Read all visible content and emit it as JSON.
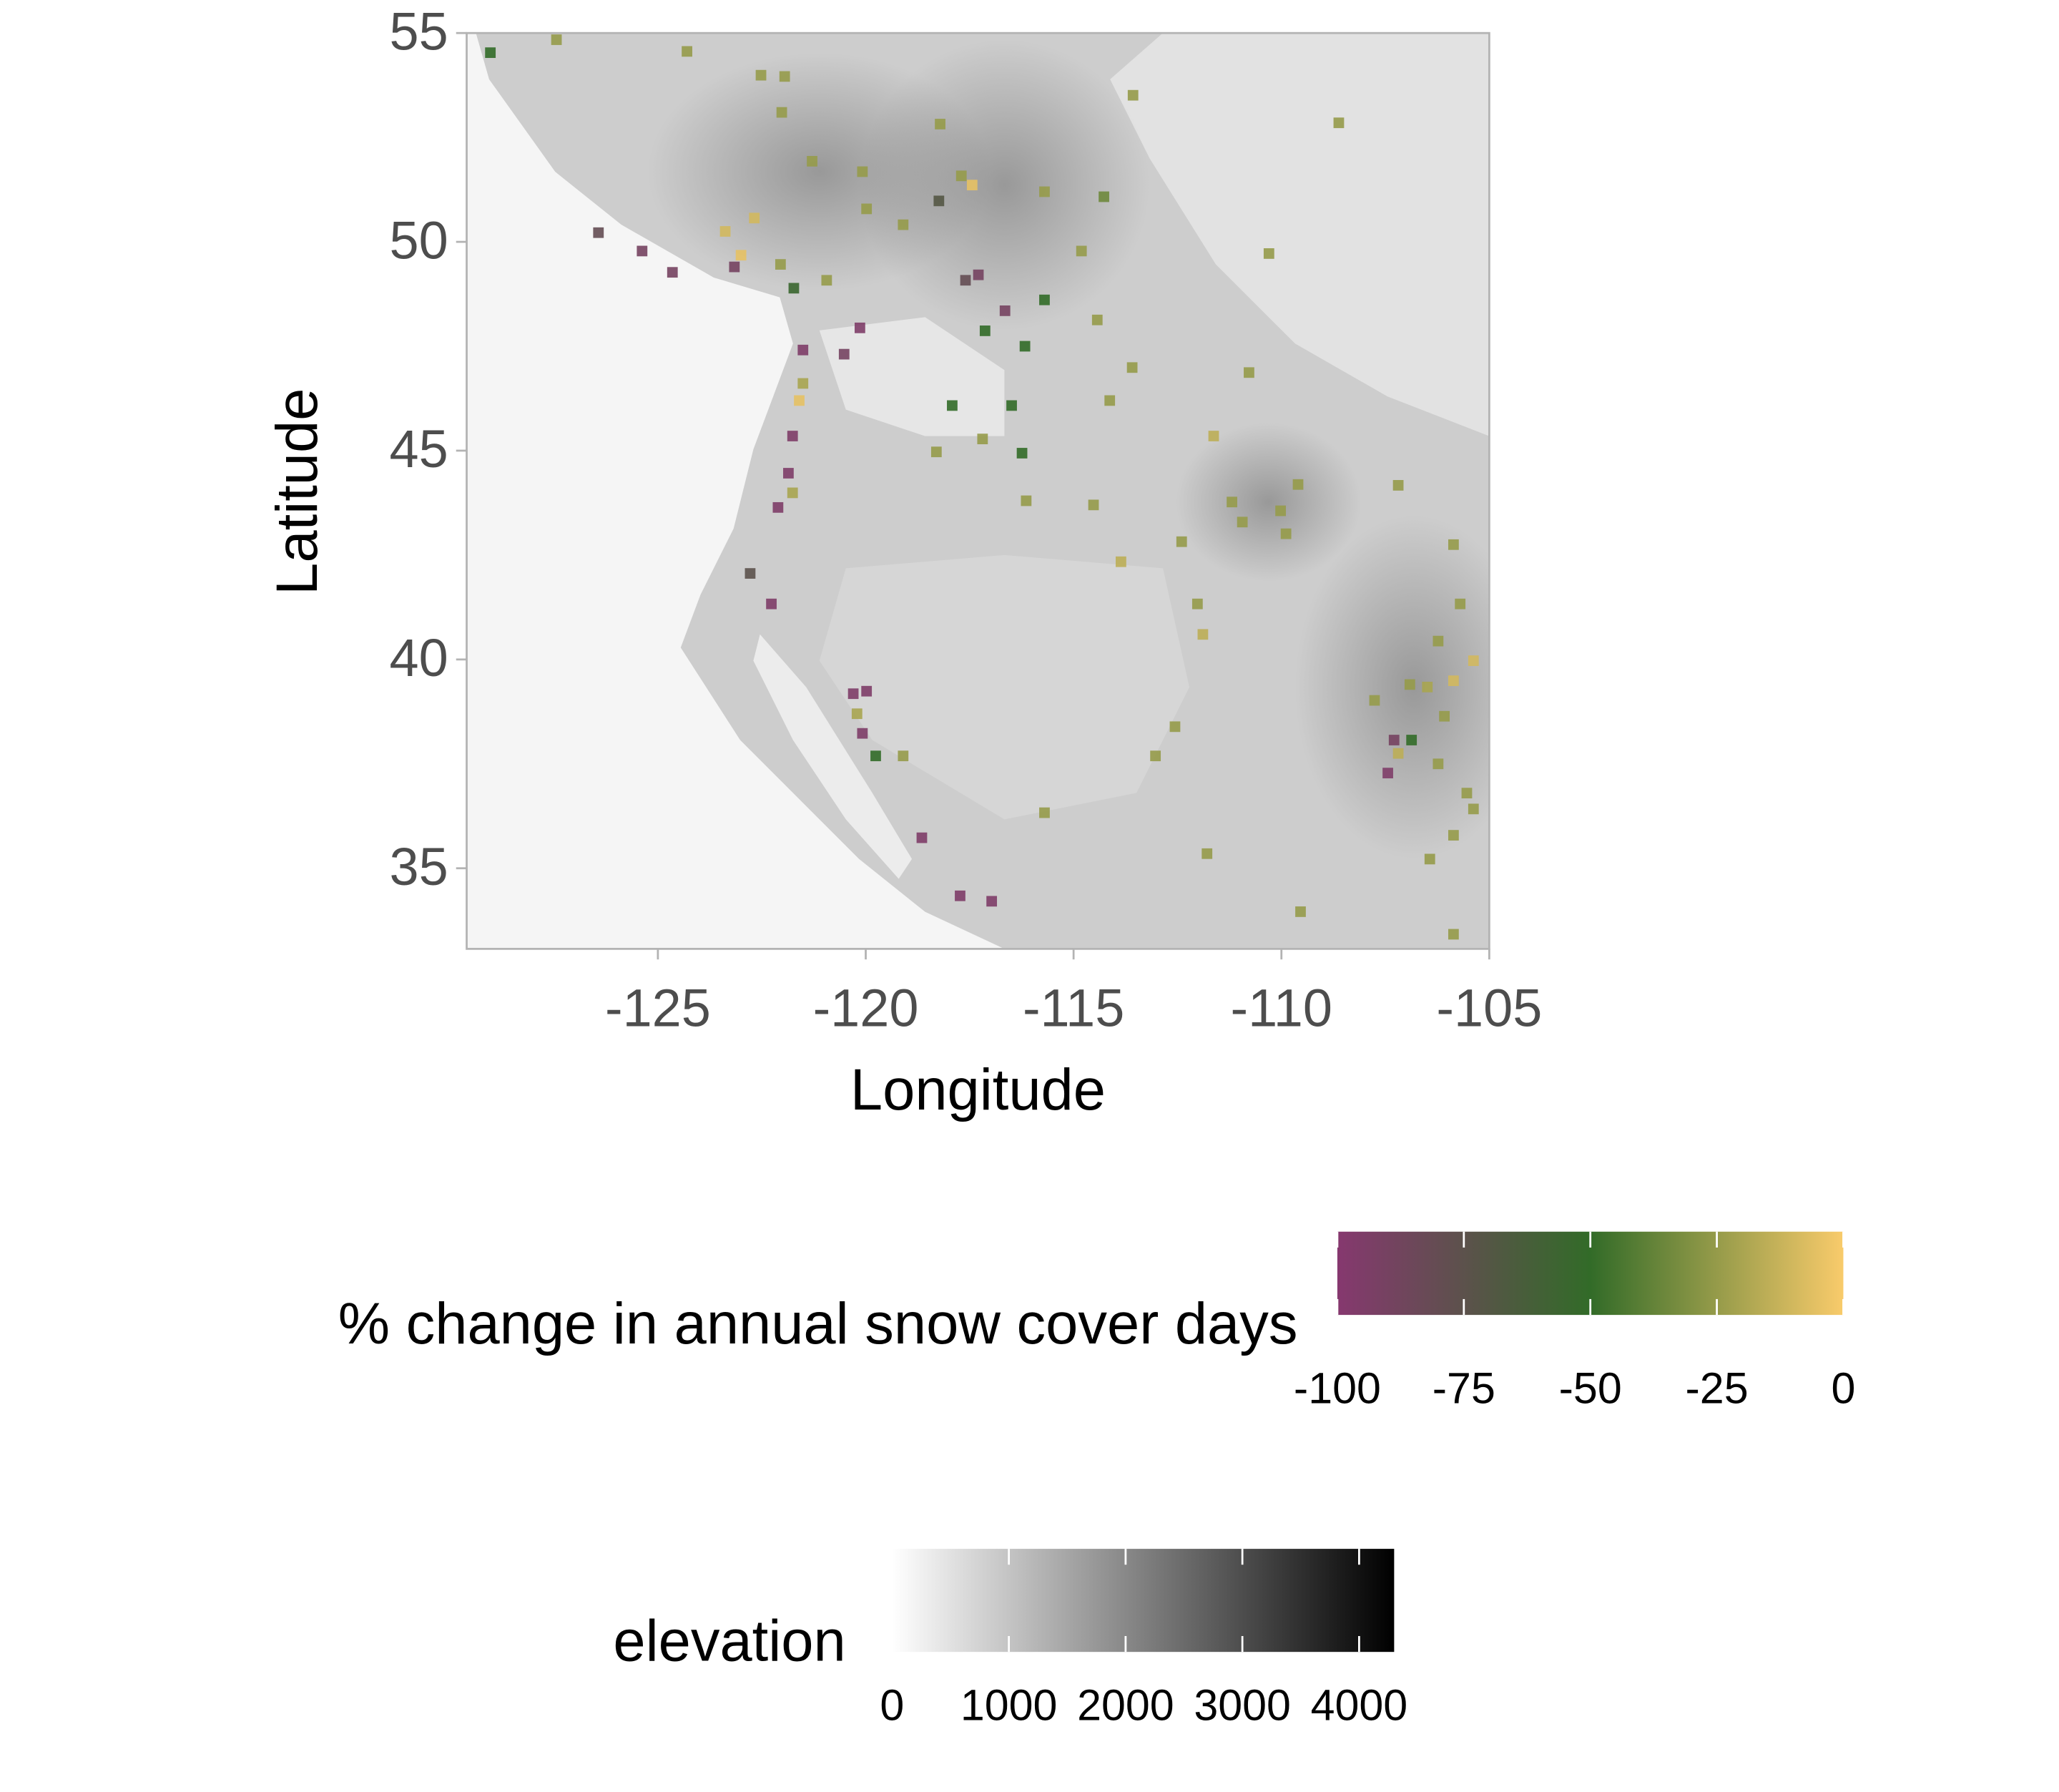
{
  "chart_data": {
    "type": "scatter",
    "x_label": "Longitude",
    "y_label": "Latitude",
    "xlim": [
      -129.6,
      -105
    ],
    "ylim": [
      33.07,
      55
    ],
    "xticks": [
      -125,
      -120,
      -115,
      -110,
      -105
    ],
    "yticks": [
      35,
      40,
      45,
      50,
      55
    ],
    "x": [
      -129.03,
      -127.44,
      -124.3,
      -122.52,
      -121.95,
      -122.02,
      -118.21,
      -108.62,
      -113.57,
      -121.29,
      -120.08,
      -117.7,
      -117.44,
      -118.24,
      -115.7,
      -114.27,
      -126.43,
      -125.38,
      -124.65,
      -123.38,
      -122.68,
      -123.0,
      -123.16,
      -121.73,
      -122.05,
      -120.94,
      -119.98,
      -119.1,
      -117.29,
      -117.6,
      -116.65,
      -115.7,
      -114.81,
      -114.43,
      -121.51,
      -120.14,
      -120.52,
      -121.51,
      -121.6,
      -117.92,
      -116.49,
      -117.19,
      -116.24,
      -116.14,
      -118.3,
      -121.76,
      -121.86,
      -121.76,
      -122.11,
      -122.78,
      -122.27,
      -120.3,
      -119.98,
      -120.21,
      -120.08,
      -119.1,
      -119.76,
      -118.65,
      -117.73,
      -116.97,
      -115.7,
      -113.59,
      -114.13,
      -114.52,
      -113.86,
      -112.4,
      -112.02,
      -111.89,
      -112.56,
      -113.03,
      -111.63,
      -111.19,
      -110.94,
      -109.89,
      -109.6,
      -110.02,
      -107.19,
      -110.3,
      -110.78,
      -105.86,
      -105.7,
      -106.23,
      -105.86,
      -105.38,
      -106.49,
      -106.91,
      -107.76,
      -107.29,
      -107.44,
      -107.19,
      -106.87,
      -106.23,
      -106.08,
      -105.54,
      -105.38,
      -105.86,
      -106.43,
      -111.79,
      -109.54,
      -105.86,
      -117.13,
      -116.17
    ],
    "y": [
      54.53,
      54.84,
      54.56,
      53.99,
      53.96,
      53.1,
      52.82,
      52.85,
      53.51,
      51.93,
      51.68,
      51.58,
      51.36,
      50.98,
      51.2,
      51.08,
      50.22,
      49.78,
      49.27,
      50.25,
      50.57,
      49.68,
      49.4,
      48.89,
      49.46,
      49.08,
      50.79,
      50.41,
      49.21,
      49.08,
      48.35,
      48.61,
      49.78,
      48.13,
      47.41,
      47.94,
      47.31,
      46.61,
      46.2,
      46.08,
      46.08,
      45.28,
      44.94,
      43.8,
      44.97,
      45.35,
      44.46,
      43.99,
      43.64,
      42.06,
      41.33,
      39.18,
      39.24,
      38.7,
      38.23,
      37.69,
      37.69,
      35.73,
      34.34,
      34.21,
      36.33,
      46.99,
      46.2,
      43.7,
      42.34,
      42.82,
      41.33,
      40.6,
      38.39,
      37.69,
      45.35,
      43.77,
      43.29,
      43.01,
      44.19,
      43.56,
      44.17,
      49.72,
      46.87,
      42.75,
      41.33,
      40.44,
      39.49,
      39.97,
      39.34,
      39.4,
      39.02,
      38.07,
      37.28,
      37.75,
      38.07,
      37.5,
      38.64,
      36.8,
      36.42,
      35.79,
      35.22,
      35.35,
      33.96,
      33.42,
      47.87,
      47.5
    ],
    "values": [
      -50,
      -25,
      -25,
      -25,
      -25,
      -25,
      -25,
      -25,
      -25,
      -25,
      -25,
      -25,
      -5,
      -70,
      -25,
      -35,
      -80,
      -90,
      -90,
      -10,
      -10,
      -5,
      -90,
      -55,
      -25,
      -25,
      -25,
      -25,
      -90,
      -80,
      -90,
      -50,
      -25,
      -25,
      -95,
      -95,
      -90,
      -20,
      -5,
      -50,
      -50,
      -25,
      -50,
      -25,
      -25,
      -95,
      -95,
      -20,
      -95,
      -75,
      -95,
      -95,
      -95,
      -20,
      -95,
      -25,
      -50,
      -95,
      -95,
      -95,
      -25,
      -25,
      -25,
      -25,
      -15,
      -25,
      -25,
      -15,
      -25,
      -25,
      -15,
      -25,
      -25,
      -25,
      -25,
      -25,
      -25,
      -25,
      -25,
      -25,
      -25,
      -25,
      -10,
      -10,
      -20,
      -25,
      -25,
      -90,
      -95,
      -15,
      -50,
      -25,
      -25,
      -25,
      -25,
      -25,
      -25,
      -25,
      -25,
      -25,
      -50,
      -50
    ],
    "color_legend": {
      "title": "% change in annual snow cover days",
      "lim": [
        -100,
        0
      ],
      "ticks": [
        -100,
        -75,
        -50,
        -25,
        0
      ],
      "stops": [
        {
          "value": -100,
          "color": "#86386f"
        },
        {
          "value": -50,
          "color": "#326b28"
        },
        {
          "value": 0,
          "color": "#f9cb6b"
        }
      ]
    },
    "elevation_legend": {
      "title": "elevation",
      "lim": [
        0,
        4300
      ],
      "ticks": [
        0,
        1000,
        2000,
        3000,
        4000
      ],
      "stops": [
        {
          "value": 0,
          "color": "#ffffff"
        },
        {
          "value": 4300,
          "color": "#000000"
        }
      ]
    }
  }
}
